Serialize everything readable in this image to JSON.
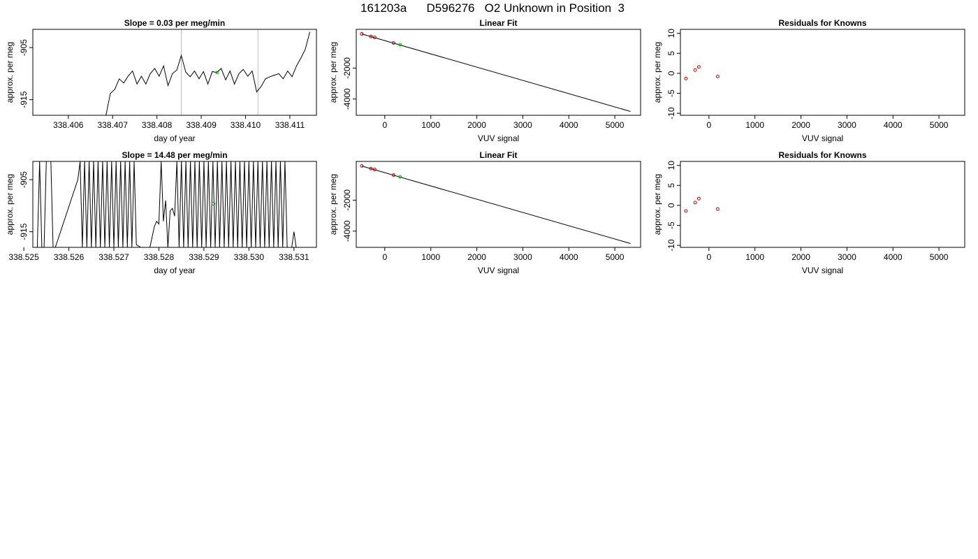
{
  "page_title": "161203a      D596276   O2 Unknown in Position  3",
  "colors": {
    "frame": "#000000",
    "trace": "#000000",
    "known": "#cc0000",
    "unknown": "#00c000",
    "marker": "#bbbbbb",
    "background": "#ffffff"
  },
  "chart_data": [
    {
      "id": "ts1",
      "type": "line",
      "title": "Slope =  0.03  per meg/min",
      "xlabel": "day of year",
      "ylabel": "approx. per meg",
      "xlim": [
        338.4052,
        338.4116
      ],
      "ylim": [
        -918,
        -901.5
      ],
      "xticks": [
        338.406,
        338.407,
        338.408,
        338.409,
        338.41,
        338.411
      ],
      "xtick_labels": [
        "338.406",
        "338.407",
        "338.408",
        "338.409",
        "338.410",
        "338.411"
      ],
      "yticks": [
        -905,
        -915
      ],
      "ytick_labels": [
        "-905",
        "-915"
      ],
      "vlines": [
        338.40855,
        338.41028
      ],
      "green_points": [
        [
          338.40936,
          -909.8
        ]
      ],
      "series": [
        {
          "x": [
            338.40685,
            338.40695,
            338.40705,
            338.40715,
            338.40725,
            338.40735,
            338.40745,
            338.40755,
            338.40765,
            338.40775,
            338.40785,
            338.40795,
            338.40805,
            338.40815,
            338.40825,
            338.40835,
            338.40845,
            338.40855,
            338.40865,
            338.40875,
            338.40885,
            338.40895,
            338.40905,
            338.40915,
            338.40925,
            338.40935,
            338.40945,
            338.40955,
            338.40965,
            338.40975,
            338.40985,
            338.40995,
            338.41005,
            338.41015,
            338.41025,
            338.41035,
            338.41045,
            338.41055,
            338.41065,
            338.41075,
            338.41085,
            338.41095,
            338.41105,
            338.41115,
            338.41125,
            338.41135,
            338.41145
          ],
          "y": [
            -918,
            -913.8,
            -913,
            -911,
            -911.8,
            -910.5,
            -909.5,
            -912,
            -910.5,
            -912,
            -910,
            -909,
            -910.5,
            -908.5,
            -912.3,
            -910,
            -909.3,
            -906.5,
            -909.7,
            -910.6,
            -909.5,
            -911,
            -909.6,
            -912,
            -909.6,
            -909.8,
            -909,
            -911.2,
            -909.5,
            -912,
            -910,
            -909.2,
            -910.5,
            -909.5,
            -913.5,
            -912.5,
            -911,
            -910.6,
            -910.3,
            -910,
            -911,
            -909.5,
            -910.6,
            -908.5,
            -907,
            -905.3,
            -902
          ]
        }
      ]
    },
    {
      "id": "lf1",
      "type": "scatter",
      "title": "Linear Fit",
      "xlabel": "VUV signal",
      "ylabel": "approx. per meg",
      "xlim": [
        -620,
        5560
      ],
      "ylim": [
        -5050,
        500
      ],
      "xticks": [
        0,
        1000,
        2000,
        3000,
        4000,
        5000
      ],
      "xtick_labels": [
        "0",
        "1000",
        "2000",
        "3000",
        "4000",
        "5000"
      ],
      "yticks": [
        -2000,
        -4000
      ],
      "ytick_labels": [
        "-2000",
        "-4000"
      ],
      "fit_line": [
        [
          -500,
          200
        ],
        [
          5340,
          -4800
        ]
      ],
      "knowns": [
        [
          -500,
          210
        ],
        [
          -300,
          40
        ],
        [
          -220,
          -20
        ],
        [
          190,
          -380
        ]
      ],
      "unknowns": [
        [
          330,
          -490
        ]
      ]
    },
    {
      "id": "rs1",
      "type": "scatter",
      "title": "Residuals for Knowns",
      "xlabel": "VUV signal",
      "ylabel": "approx. per meg",
      "xlim": [
        -620,
        5560
      ],
      "ylim": [
        -10.5,
        11
      ],
      "xticks": [
        0,
        1000,
        2000,
        3000,
        4000,
        5000
      ],
      "xtick_labels": [
        "0",
        "1000",
        "2000",
        "3000",
        "4000",
        "5000"
      ],
      "yticks": [
        10,
        5,
        0,
        -5,
        -10
      ],
      "ytick_labels": [
        "10",
        "5",
        "0",
        "-5",
        "-10"
      ],
      "points": [
        [
          -500,
          -1.3
        ],
        [
          -300,
          0.8
        ],
        [
          -220,
          1.6
        ],
        [
          190,
          -0.8
        ]
      ]
    },
    {
      "id": "ts2",
      "type": "line",
      "title": "Slope =  14.48  per meg/min",
      "xlabel": "day of year",
      "ylabel": "approx. per meg",
      "xlim": [
        338.5252,
        338.5315
      ],
      "ylim": [
        -918,
        -901.5
      ],
      "xticks": [
        338.525,
        338.526,
        338.527,
        338.528,
        338.529,
        338.53,
        338.531
      ],
      "xtick_labels": [
        "338.525",
        "338.526",
        "338.527",
        "338.528",
        "338.529",
        "338.530",
        "338.531"
      ],
      "yticks": [
        -905,
        -915
      ],
      "ytick_labels": [
        "-905",
        "-915"
      ],
      "vlines": [],
      "green_points": [
        [
          338.52921,
          -909.6
        ]
      ],
      "series": [
        {
          "x": [
            338.5253,
            338.52535,
            338.5254,
            338.52545,
            338.5255,
            338.5256,
            338.52565,
            338.5257,
            338.5262,
            338.52625,
            338.5263,
            338.52635,
            338.5264,
            338.52645,
            338.5265,
            338.52655,
            338.5266,
            338.52665,
            338.5267,
            338.52675,
            338.5268,
            338.52685,
            338.5269,
            338.52695,
            338.527,
            338.52705,
            338.5271,
            338.52715,
            338.5272,
            338.52725,
            338.5273,
            338.52735,
            338.5274,
            338.52745,
            338.5275,
            338.5276,
            338.5277,
            338.5278,
            338.5279,
            338.52795,
            338.528,
            338.52805,
            338.5281,
            338.52815,
            338.5282,
            338.52825,
            338.5283,
            338.52835,
            338.5284,
            338.52845,
            338.5285,
            338.52855,
            338.5286,
            338.52865,
            338.5287,
            338.52875,
            338.5288,
            338.52885,
            338.5289,
            338.52895,
            338.529,
            338.52905,
            338.5291,
            338.52915,
            338.5292,
            338.52925,
            338.5293,
            338.52935,
            338.5294,
            338.52945,
            338.5295,
            338.52955,
            338.5296,
            338.52965,
            338.5297,
            338.52975,
            338.5298,
            338.52985,
            338.5299,
            338.52995,
            338.53,
            338.53005,
            338.5301,
            338.53015,
            338.5302,
            338.53025,
            338.5303,
            338.53035,
            338.5304,
            338.53045,
            338.5305,
            338.53055,
            338.5306,
            338.53065,
            338.5307,
            338.53075,
            338.5308,
            338.53085,
            338.53095,
            338.531,
            338.53105
          ],
          "y": [
            -918,
            -901.5,
            -918,
            -918,
            -901.5,
            -901.5,
            -918,
            -918,
            -905,
            -901.5,
            -918,
            -901.5,
            -918,
            -901.5,
            -918,
            -901.5,
            -918,
            -901.5,
            -918,
            -901.5,
            -918,
            -901.5,
            -918,
            -901.5,
            -918,
            -901.5,
            -918,
            -901.5,
            -918,
            -901.5,
            -918,
            -901.5,
            -918,
            -901.5,
            -917.5,
            -918,
            -918,
            -918,
            -914,
            -913,
            -913.5,
            -901.5,
            -913,
            -909,
            -918,
            -911,
            -910.5,
            -912,
            -901.5,
            -918,
            -901.5,
            -918,
            -901.5,
            -918,
            -901.5,
            -918,
            -901.5,
            -918,
            -901.5,
            -918,
            -901.5,
            -918,
            -901.5,
            -918,
            -901.5,
            -918,
            -901.5,
            -918,
            -901.5,
            -918,
            -901.5,
            -918,
            -901.5,
            -918,
            -901.5,
            -918,
            -901.5,
            -918,
            -901.5,
            -918,
            -901.5,
            -918,
            -901.5,
            -918,
            -901.5,
            -918,
            -901.5,
            -918,
            -901.5,
            -918,
            -901.5,
            -918,
            -901.5,
            -918,
            -901.5,
            -918,
            -901.5,
            -918,
            -918,
            -915,
            -918
          ]
        }
      ]
    },
    {
      "id": "lf2",
      "type": "scatter",
      "title": "Linear Fit",
      "xlabel": "VUV signal",
      "ylabel": "approx. per meg",
      "xlim": [
        -620,
        5560
      ],
      "ylim": [
        -5050,
        500
      ],
      "xticks": [
        0,
        1000,
        2000,
        3000,
        4000,
        5000
      ],
      "xtick_labels": [
        "0",
        "1000",
        "2000",
        "3000",
        "4000",
        "5000"
      ],
      "yticks": [
        -2000,
        -4000
      ],
      "ytick_labels": [
        "-2000",
        "-4000"
      ],
      "fit_line": [
        [
          -500,
          200
        ],
        [
          5340,
          -4800
        ]
      ],
      "knowns": [
        [
          -500,
          210
        ],
        [
          -300,
          40
        ],
        [
          -220,
          -20
        ],
        [
          190,
          -380
        ]
      ],
      "unknowns": [
        [
          330,
          -490
        ]
      ]
    },
    {
      "id": "rs2",
      "type": "scatter",
      "title": "Residuals for Knowns",
      "xlabel": "VUV signal",
      "ylabel": "approx. per meg",
      "xlim": [
        -620,
        5560
      ],
      "ylim": [
        -10.5,
        11
      ],
      "xticks": [
        0,
        1000,
        2000,
        3000,
        4000,
        5000
      ],
      "xtick_labels": [
        "0",
        "1000",
        "2000",
        "3000",
        "4000",
        "5000"
      ],
      "yticks": [
        10,
        5,
        0,
        -5,
        -10
      ],
      "ytick_labels": [
        "10",
        "5",
        "0",
        "-5",
        "-10"
      ],
      "points": [
        [
          -500,
          -1.4
        ],
        [
          -300,
          0.7
        ],
        [
          -220,
          1.7
        ],
        [
          190,
          -0.9
        ]
      ]
    }
  ]
}
